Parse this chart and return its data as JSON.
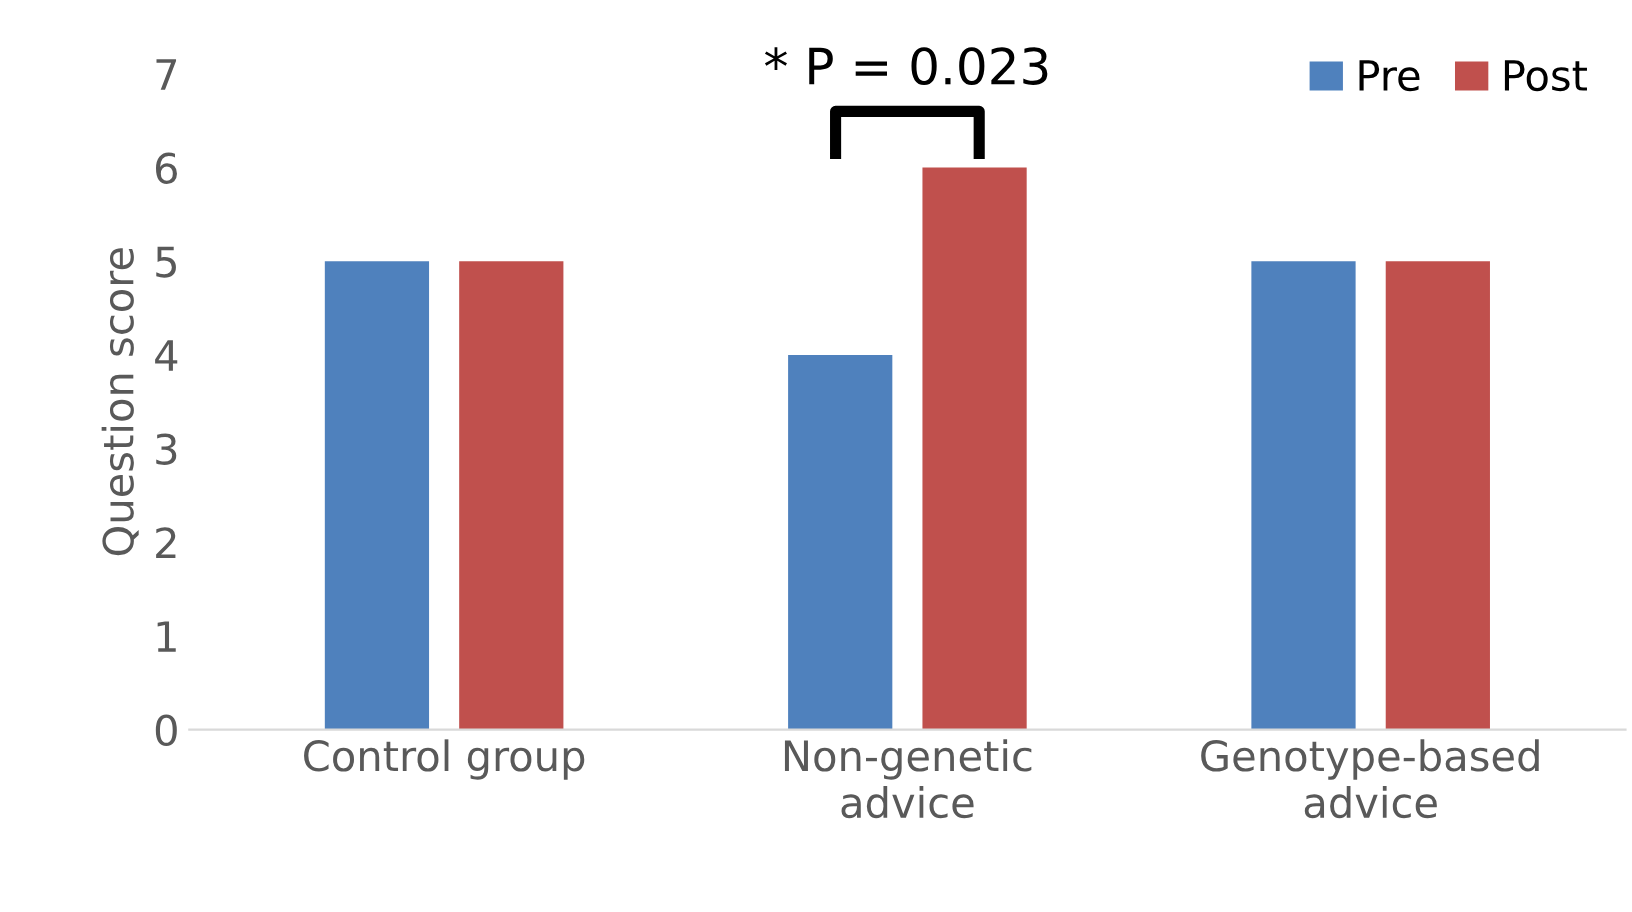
{
  "chart_data": {
    "type": "bar",
    "ylabel": "Question score",
    "categories": [
      "Control group",
      "Non-genetic\nadvice",
      "Genotype-based\nadvice"
    ],
    "series": [
      {
        "name": "Pre",
        "color": "#4f81bd",
        "values": [
          5,
          4,
          5
        ]
      },
      {
        "name": "Post",
        "color": "#c0504d",
        "values": [
          5,
          6,
          5
        ]
      }
    ],
    "ylim": [
      0,
      7
    ],
    "yticks": [
      0,
      1,
      2,
      3,
      4,
      5,
      6,
      7
    ],
    "grid": false,
    "legend": "top right",
    "annotations": [
      "* P = 0.023"
    ]
  }
}
